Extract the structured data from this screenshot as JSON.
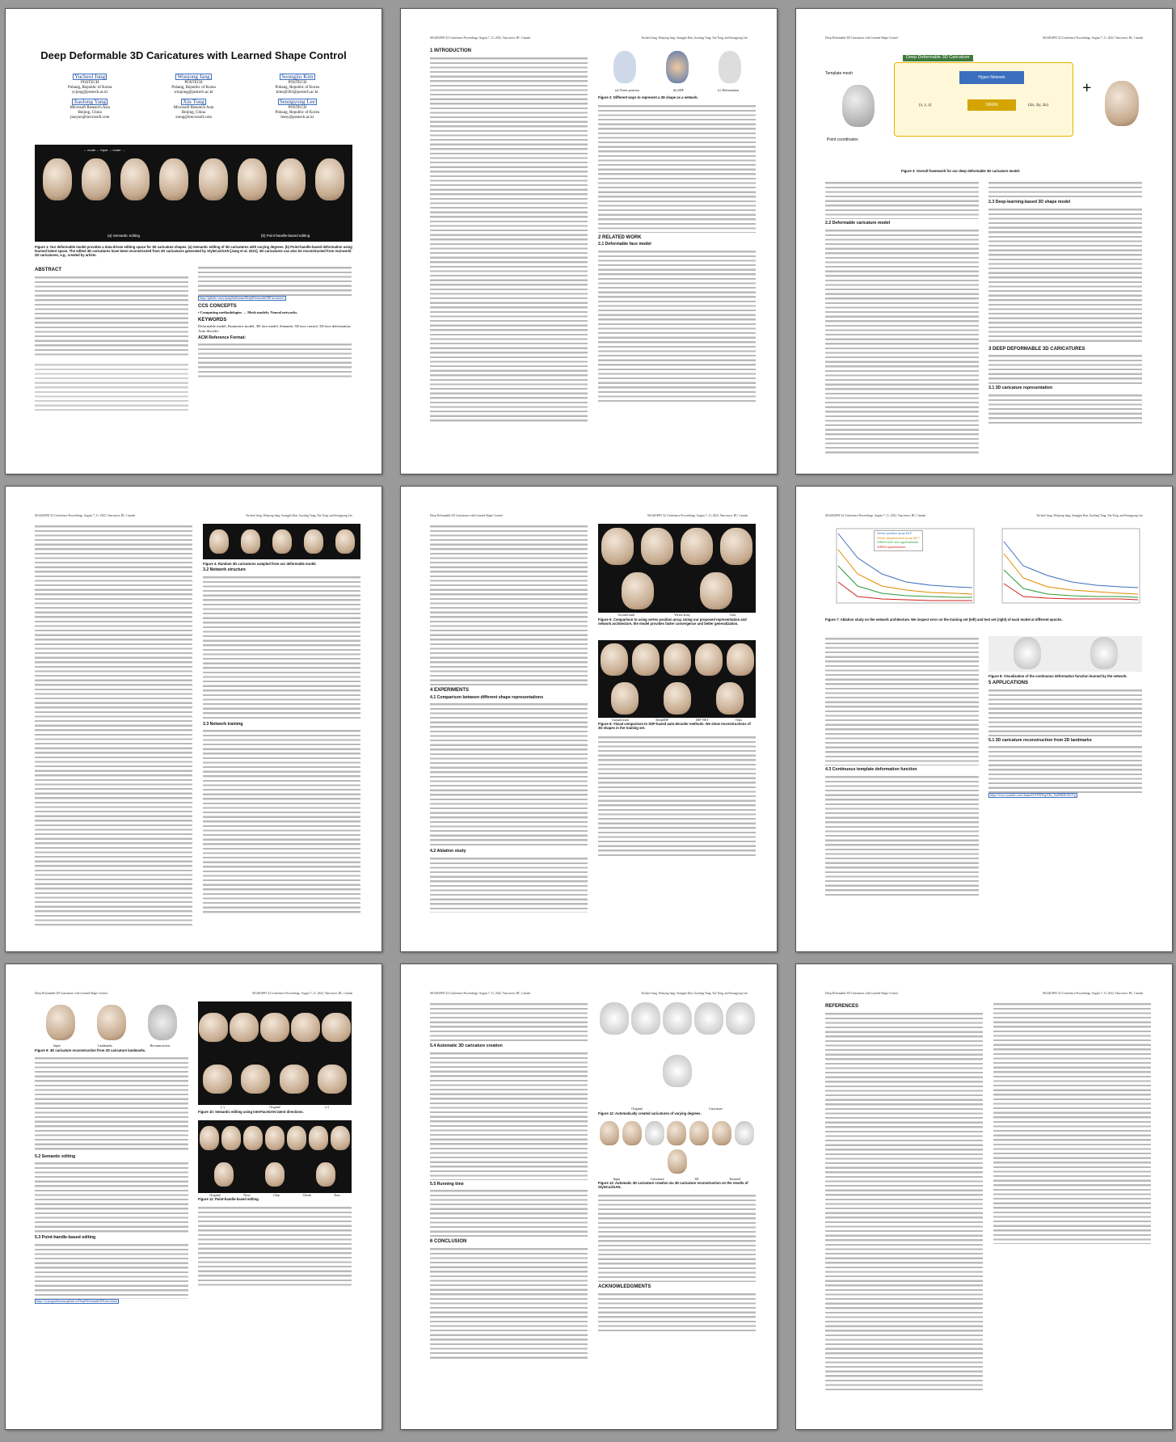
{
  "paper": {
    "title": "Deep Deformable 3D Caricatures with Learned Shape Control",
    "header_left": "Deep Deformable 3D Caricatures with Learned Shape Control",
    "header_right": "SIGGRAPH '22 Conference Proceedings, August 7–11, 2022, Vancouver, BC, Canada",
    "header_authors": "Yucheol Jung, Wonjong Jang, Soongjin Kim, Jiaolong Yang, Xin Tong, and Seungyong Lee"
  },
  "authors": [
    {
      "name": "Yucheol Jung",
      "affil": "POSTECH",
      "loc": "Pohang, Republic of Korea",
      "email": "ycjung@postech.ac.kr"
    },
    {
      "name": "Wonjong Jang",
      "affil": "POSTECH",
      "loc": "Pohang, Republic of Korea",
      "email": "wonjong@postech.ac.kr"
    },
    {
      "name": "Soongjin Kim",
      "affil": "POSTECH",
      "loc": "Pohang, Republic of Korea",
      "email": "kimsj0302@postech.ac.kr"
    },
    {
      "name": "Jiaolong Yang",
      "affil": "Microsoft Research Asia",
      "loc": "Beijing, China",
      "email": "jiaoyan@microsoft.com"
    },
    {
      "name": "Xin Tong",
      "affil": "Microsoft Research Asia",
      "loc": "Beijing, China",
      "email": "xtong@microsoft.com"
    },
    {
      "name": "Seungyong Lee",
      "affil": "POSTECH",
      "loc": "Pohang, Republic of Korea",
      "email": "leesy@postech.ac.kr"
    }
  ],
  "fig1": {
    "caption": "Figure 1: Our deformable model provides a data-driven editing space for 3D caricature shapes. (a) Semantic editing of 3D caricatures with varying degrees. (b) Point-handle-based deformation using learned latent space. The edited 3D caricatures have been reconstructed from 2D caricatures generated by StyleCariGAN [Jang et al. 2021]. 3D caricatures can also be reconstructed from real-world 2D caricatures, e.g., created by artists.",
    "label_a": "(a) Semantic editing",
    "label_b": "(b) Point-handle-based editing",
    "top_label": "← crude ← Input → crude →"
  },
  "p1": {
    "abstract_h": "ABSTRACT",
    "ccs_h": "CCS CONCEPTS",
    "ccs": "• Computing methodologies → Mesh models; Neural networks.",
    "kw_h": "KEYWORDS",
    "kw": "Deformable model, Parametric model, 3D face model, Semantic 3D face control, 3D face deformation, Auto-decoder",
    "acm_h": "ACM Reference Format:",
    "github": "https://github.com/ycjungSubhuman/DeepDeformable3DCaricatures"
  },
  "p2": {
    "s1": "1 INTRODUCTION",
    "s2": "2 RELATED WORK",
    "s21": "2.1 Deformable face model",
    "fig2": "Figure 2: Different ways to represent a 3D shape as a network.",
    "fig2_a": "(a) Vertex position",
    "fig2_b": "(b) SDF",
    "fig2_c": "(c) Deformation"
  },
  "p3": {
    "fig3": "Figure 3: Overall framework for our deep deformable 3D caricature model.",
    "fig3_title": "Deep Deformable 3D Caricature",
    "fig3_hyper": "Hyper-Network",
    "fig3_siren": "SIREN",
    "fig3_template": "Template mesh",
    "fig3_points": "Point coordinates",
    "fig3_xyz": "(x, y, z)",
    "fig3_dxyz": "(Δx, Δy, Δz)",
    "s22": "2.2 Deformable caricature model",
    "s23": "2.3 Deep-learning-based 3D shape model",
    "s3": "3 DEEP DEFORMABLE 3D CARICATURES",
    "s31": "3.1 3D caricature representation"
  },
  "p4": {
    "fig4": "Figure 4: Random 3D caricatures sampled from our deformable model.",
    "s32": "3.2 Network structure",
    "s33": "3.3 Network training"
  },
  "p5": {
    "fig5": "Figure 5: Comparison to using vertex position array. Using our proposed representation and network architecture, the model provides faster convergence and better generalization.",
    "fig5_labels": [
      "Ground truth",
      "Vertex array",
      "Ours"
    ],
    "fig6": "Figure 6: Visual comparison to SDF-based auto-decoder methods. We show reconstructions of 3D shapes in the training set.",
    "fig6_labels": [
      "Ground truth",
      "DeepSDF",
      "DIF-NET",
      "Ours"
    ],
    "s4": "4 EXPERIMENTS",
    "s41": "4.1 Comparison between different shape representations",
    "s42": "4.2 Ablation study"
  },
  "p6": {
    "fig7": "Figure 7: Ablation study on the network architecture. We inspect error on the training set (left) and test set (right) of each model at different epochs.",
    "fig8": "Figure 8: Visualization of the continuous deformation function learned by the network.",
    "s43": "4.3 Continuous template deformation function",
    "s5": "5 APPLICATIONS",
    "s51": "5.1 3D caricature reconstruction from 2D landmarks",
    "youtube": "https://www.youtube.com/channel/UC9WNqrGKy_9aZHbOb1SGYg",
    "legend": [
      "Vertex position array MLP",
      "Vertex displacement array MLP",
      "SIREN MLP w/o hypernetwork",
      "SIREN hypernetwork"
    ]
  },
  "p7": {
    "fig9": "Figure 9: 3D caricature reconstruction from 2D caricature landmarks.",
    "fig9_labels": [
      "Input",
      "Landmarks",
      "Reconstruction"
    ],
    "fig10": "Figure 10: Semantic editing using InterFaceGAN latent directions.",
    "fig10_labels": [
      "(−)",
      "Original",
      "(+)"
    ],
    "fig11": "Figure 11: Point-handle-based editing.",
    "fig11_labels": [
      "Original",
      "Nose",
      "Chin",
      "Cheek",
      "Ears"
    ],
    "s52": "5.2 Semantic editing",
    "s53": "5.3 Point-handle-based editing",
    "proj_url": "https://ycjungsubhuman.github.io/DeepDeformable3DCaricatures"
  },
  "p8": {
    "s54": "5.4 Automatic 3D caricature creation",
    "s55": "5.5 Running time",
    "s6": "6 CONCLUSION",
    "ack": "ACKNOWLEDGMENTS",
    "fig12": "Figure 12: Automatically created caricatures of varying degrees.",
    "fig12_labels": [
      "Original",
      "Caricature"
    ],
    "fig13": "Figure 13: Automatic 3D caricature creation via 3D caricature reconstruction on the results of StyleCariGAN.",
    "fig13_labels": [
      "Input",
      "Caricature",
      "3D",
      "Textured"
    ]
  },
  "p9": {
    "refs": "REFERENCES"
  }
}
